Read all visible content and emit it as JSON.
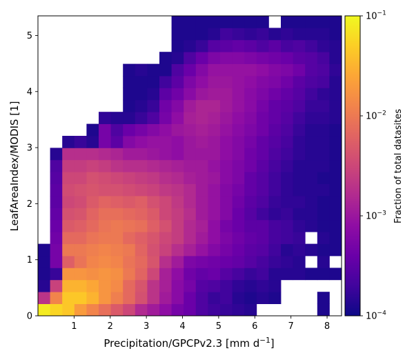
{
  "chart_data": {
    "type": "heatmap",
    "xlabel_main": "Precipitation/GPCPv2.3 [mm d",
    "xlabel_sup": "−1",
    "xlabel_end": "]",
    "ylabel": "LeafAreaIndex/MODIS [1]",
    "colorbar_label": "Fraction of total datasites",
    "xlim": [
      0,
      8.4
    ],
    "ylim": [
      0,
      5.35
    ],
    "x_ticks": [
      1,
      2,
      3,
      4,
      5,
      6,
      7,
      8
    ],
    "y_ticks": [
      0,
      1,
      2,
      3,
      4,
      5
    ],
    "color_scale": "log",
    "clim": [
      0.0001,
      0.1
    ],
    "colorbar_ticks": [
      {
        "value": 0.1,
        "label_base": "10",
        "label_exp": "−1"
      },
      {
        "value": 0.01,
        "label_base": "10",
        "label_exp": "−2"
      },
      {
        "value": 0.001,
        "label_base": "10",
        "label_exp": "−3"
      },
      {
        "value": 0.0001,
        "label_base": "10",
        "label_exp": "−4"
      }
    ],
    "colormap": "plasma",
    "bin_width_x": 0.336,
    "bin_height_y": 0.214,
    "n_cols": 25,
    "n_rows": 25,
    "rows_log10_fraction_bottom_to_top": [
      [
        -1.1,
        -1.25,
        -1.35,
        -1.7,
        -1.9,
        -2.1,
        -2.3,
        -2.5,
        -2.8,
        -2.95,
        -3.1,
        -3.3,
        -3.4,
        -3.6,
        -3.7,
        -3.75,
        -3.8,
        -3.85,
        null,
        null,
        null,
        null,
        null,
        -3.9,
        null
      ],
      [
        -2.7,
        -1.9,
        -1.35,
        -1.35,
        -1.5,
        -1.75,
        -1.95,
        -2.15,
        -2.4,
        -2.7,
        -2.95,
        -3.15,
        -3.4,
        -3.6,
        -3.75,
        -3.7,
        -3.85,
        -3.9,
        -3.85,
        -3.9,
        null,
        null,
        null,
        -3.9,
        null
      ],
      [
        -3.85,
        -2.55,
        -1.5,
        -1.5,
        -1.6,
        -1.75,
        -1.85,
        -2.15,
        -2.35,
        -2.7,
        -2.9,
        -3.15,
        -3.3,
        -3.55,
        -3.6,
        -3.7,
        -3.8,
        -3.85,
        -3.8,
        -3.85,
        null,
        null,
        null,
        null,
        null
      ],
      [
        -3.9,
        -3.75,
        -1.75,
        -1.75,
        -1.8,
        -1.75,
        -1.8,
        -2.0,
        -2.2,
        -2.5,
        -2.9,
        -3.1,
        -3.35,
        -3.45,
        -3.4,
        -3.55,
        -3.65,
        -3.75,
        -3.7,
        -3.85,
        -3.85,
        -3.85,
        -3.9,
        -3.9,
        -3.9
      ],
      [
        -3.9,
        -3.3,
        -2.25,
        -2.05,
        -1.9,
        -1.85,
        -1.9,
        -2.05,
        -2.15,
        -2.35,
        -2.75,
        -2.95,
        -3.25,
        -3.3,
        -3.35,
        -3.4,
        -3.45,
        -3.55,
        -3.65,
        -3.75,
        -3.8,
        -3.85,
        null,
        -3.85,
        null
      ],
      [
        -3.9,
        -3.3,
        -2.0,
        -2.0,
        -1.95,
        -1.9,
        -1.95,
        -2.0,
        -2.2,
        -2.4,
        -2.55,
        -2.75,
        -2.9,
        -3.05,
        -3.2,
        -3.3,
        -3.4,
        -3.5,
        -3.55,
        -3.7,
        -3.85,
        -3.8,
        -3.85,
        -3.9,
        -3.9
      ],
      [
        null,
        -3.35,
        -2.15,
        -2.15,
        -2.05,
        -2.0,
        -2.0,
        -2.15,
        -2.25,
        -2.35,
        -2.5,
        -2.6,
        -2.8,
        -2.95,
        -3.1,
        -3.25,
        -3.35,
        -3.45,
        -3.5,
        -3.65,
        -3.7,
        -3.75,
        null,
        -3.85,
        -3.9
      ],
      [
        null,
        -3.4,
        -2.3,
        -2.25,
        -2.15,
        -2.05,
        -2.0,
        -2.05,
        -2.1,
        -2.25,
        -2.4,
        -2.6,
        -2.8,
        -2.9,
        -3.1,
        -3.3,
        -3.4,
        -3.5,
        -3.5,
        -3.65,
        -3.7,
        -3.8,
        -3.85,
        -3.9,
        -3.9
      ],
      [
        null,
        -3.45,
        -2.4,
        -2.35,
        -2.2,
        -2.1,
        -2.1,
        -2.15,
        -2.2,
        -2.3,
        -2.5,
        -2.6,
        -2.75,
        -2.95,
        -3.05,
        -3.2,
        -3.4,
        -3.55,
        -3.7,
        -3.8,
        -3.75,
        -3.85,
        -3.85,
        -3.9,
        -3.9
      ],
      [
        null,
        -3.5,
        -2.5,
        -2.45,
        -2.3,
        -2.2,
        -2.25,
        -2.3,
        -2.25,
        -2.4,
        -2.5,
        -2.65,
        -2.8,
        -2.95,
        -3.05,
        -3.2,
        -3.35,
        -3.5,
        -3.6,
        -3.75,
        -3.8,
        -3.8,
        -3.85,
        -3.9,
        -3.9
      ],
      [
        null,
        -3.5,
        -2.45,
        -2.4,
        -2.35,
        -2.4,
        -2.4,
        -2.45,
        -2.5,
        -2.55,
        -2.65,
        -2.7,
        -2.8,
        -2.95,
        -3.05,
        -3.2,
        -3.3,
        -3.45,
        -3.55,
        -3.7,
        -3.8,
        -3.85,
        -3.85,
        -3.85,
        -3.9
      ],
      [
        null,
        -3.55,
        -2.5,
        -2.5,
        -2.4,
        -2.45,
        -2.5,
        -2.55,
        -2.6,
        -2.65,
        -2.75,
        -2.8,
        -2.9,
        -2.95,
        -3.0,
        -3.15,
        -3.25,
        -3.45,
        -3.55,
        -3.7,
        -3.8,
        -3.85,
        -3.85,
        -3.9,
        -3.9
      ],
      [
        null,
        -3.6,
        -2.6,
        -2.6,
        -2.55,
        -2.6,
        -2.7,
        -2.75,
        -2.75,
        -2.8,
        -2.85,
        -2.9,
        -2.95,
        -2.95,
        -3.05,
        -3.15,
        -3.25,
        -3.35,
        -3.5,
        -3.65,
        -3.75,
        -3.85,
        -3.85,
        -3.85,
        -3.9
      ],
      [
        null,
        -3.85,
        -2.75,
        -2.75,
        -2.75,
        -2.8,
        -2.85,
        -2.95,
        -2.95,
        -3.0,
        -3.05,
        -3.1,
        -3.0,
        -3.0,
        -3.0,
        -3.1,
        -3.2,
        -3.35,
        -3.45,
        -3.6,
        -3.7,
        -3.8,
        -3.85,
        -3.85,
        -3.9
      ],
      [
        null,
        null,
        -3.85,
        -3.75,
        -3.85,
        -3.3,
        -3.5,
        -3.2,
        -3.1,
        -3.05,
        -3.05,
        -3.1,
        -3.0,
        -2.95,
        -3.0,
        -3.1,
        -3.2,
        -3.3,
        -3.45,
        -3.55,
        -3.65,
        -3.8,
        -3.85,
        -3.85,
        -3.9
      ],
      [
        null,
        null,
        null,
        null,
        -3.9,
        -3.3,
        -3.6,
        -3.4,
        -3.3,
        -3.2,
        -3.1,
        -3.0,
        -2.95,
        -2.9,
        -2.95,
        -3.05,
        -3.15,
        -3.25,
        -3.35,
        -3.5,
        -3.6,
        -3.75,
        -3.85,
        -3.85,
        -3.9
      ],
      [
        null,
        null,
        null,
        null,
        null,
        -3.8,
        -3.85,
        -3.85,
        -3.75,
        -3.6,
        -3.3,
        -3.1,
        -2.9,
        -2.85,
        -2.9,
        -3.0,
        -3.1,
        -3.2,
        -3.35,
        -3.45,
        -3.55,
        -3.7,
        -3.8,
        -3.8,
        -3.85
      ],
      [
        null,
        null,
        null,
        null,
        null,
        null,
        null,
        -3.9,
        -3.85,
        -3.75,
        -3.35,
        -3.2,
        -2.95,
        -2.85,
        -2.85,
        -2.95,
        -3.05,
        -3.15,
        -3.3,
        -3.45,
        -3.5,
        -3.6,
        -3.75,
        -3.75,
        -3.85
      ],
      [
        null,
        null,
        null,
        null,
        null,
        null,
        null,
        -3.9,
        -3.9,
        -3.85,
        -3.5,
        -3.35,
        -3.15,
        -3.0,
        -2.95,
        -2.95,
        -3.05,
        -3.15,
        -3.25,
        -3.35,
        -3.45,
        -3.55,
        -3.7,
        -3.8,
        -3.85
      ],
      [
        null,
        null,
        null,
        null,
        null,
        null,
        null,
        -3.9,
        -3.9,
        -3.9,
        -3.7,
        -3.5,
        -3.25,
        -3.1,
        -3.0,
        -3.0,
        -3.05,
        -3.1,
        -3.2,
        -3.25,
        -3.35,
        -3.5,
        -3.6,
        -3.65,
        -3.85
      ],
      [
        null,
        null,
        null,
        null,
        null,
        null,
        null,
        -3.9,
        -3.85,
        -3.9,
        -3.9,
        -3.6,
        -3.4,
        -3.2,
        -3.05,
        -3.05,
        -3.05,
        -3.05,
        -3.1,
        -3.2,
        -3.25,
        -3.35,
        -3.55,
        -3.6,
        -3.8
      ],
      [
        null,
        null,
        null,
        null,
        null,
        null,
        null,
        null,
        null,
        null,
        -3.9,
        -3.85,
        -3.6,
        -3.4,
        -3.25,
        -3.2,
        -3.2,
        -3.25,
        -3.3,
        -3.35,
        -3.4,
        -3.5,
        -3.55,
        -3.65,
        -3.85
      ],
      [
        null,
        null,
        null,
        null,
        null,
        null,
        null,
        null,
        null,
        null,
        null,
        -3.9,
        -3.85,
        -3.75,
        -3.55,
        -3.5,
        -3.45,
        -3.5,
        -3.6,
        -3.5,
        -3.65,
        -3.6,
        -3.7,
        -3.8,
        -3.85
      ],
      [
        null,
        null,
        null,
        null,
        null,
        null,
        null,
        null,
        null,
        null,
        null,
        -3.9,
        -3.9,
        -3.9,
        -3.85,
        -3.7,
        -3.75,
        -3.8,
        -3.75,
        -3.85,
        -3.8,
        -3.85,
        -3.85,
        -3.85,
        -3.9
      ],
      [
        null,
        null,
        null,
        null,
        null,
        null,
        null,
        null,
        null,
        null,
        null,
        -3.9,
        -3.9,
        -3.9,
        -3.9,
        -3.9,
        -3.9,
        -3.9,
        -3.9,
        null,
        -3.9,
        -3.9,
        -3.9,
        -3.9,
        -3.9
      ]
    ]
  }
}
